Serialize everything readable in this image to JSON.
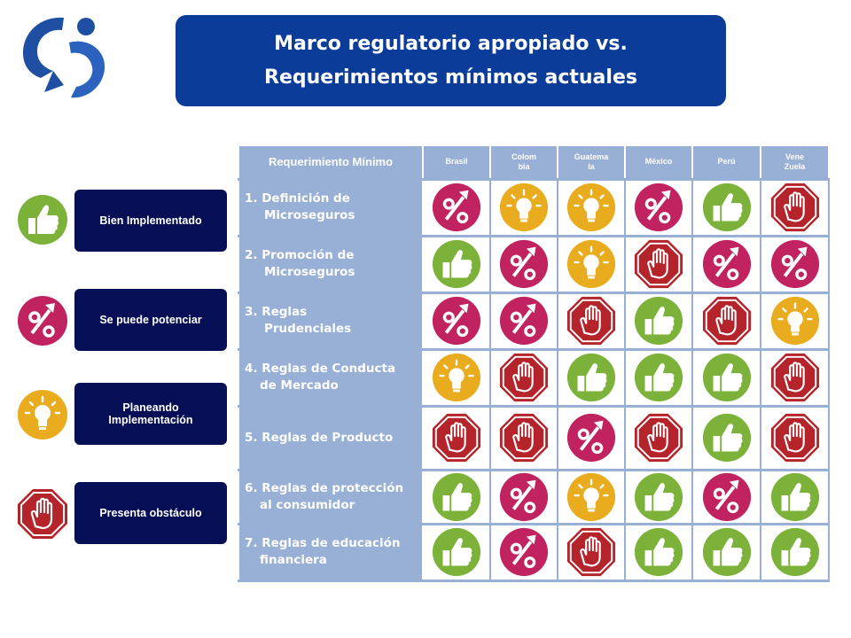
{
  "title": {
    "line1": "Marco regulatorio apropiado vs.",
    "line2": "Requerimientos mínimos actuales"
  },
  "colors": {
    "title_bg": "#0c3c9a",
    "legend_bg": "#060e55",
    "table_bg": "#98b0d6",
    "thumb": "#7cb23a",
    "percent": "#c0235f",
    "bulb": "#e8ac1e",
    "stop": "#b4242a"
  },
  "legend": [
    {
      "label": "Bien Implementado",
      "icon": "thumb"
    },
    {
      "label": "Se puede potenciar",
      "icon": "percent"
    },
    {
      "label": "Planeando Implementación",
      "icon": "bulb"
    },
    {
      "label": "Presenta obstáculo",
      "icon": "stop"
    }
  ],
  "table": {
    "req_header": "Requerimiento Mínimo",
    "countries": [
      {
        "line1": "Brasil",
        "line2": ""
      },
      {
        "line1": "Colom",
        "line2": "bia"
      },
      {
        "line1": "Guatema",
        "line2": "la"
      },
      {
        "line1": "México",
        "line2": ""
      },
      {
        "line1": "Perú",
        "line2": ""
      },
      {
        "line1": "Vene",
        "line2": "Zuela"
      }
    ],
    "rows": [
      {
        "line1": "1.  Definición de",
        "line2": "Microseguros",
        "icons": [
          "percent",
          "bulb",
          "bulb",
          "percent",
          "thumb",
          "stop"
        ]
      },
      {
        "line1": "2.  Promoción de",
        "line2": "Microseguros",
        "icons": [
          "thumb",
          "percent",
          "bulb",
          "stop",
          "percent",
          "percent"
        ]
      },
      {
        "line1": "3.  Reglas",
        "line2": "Prudenciales",
        "icons": [
          "percent",
          "percent",
          "stop",
          "thumb",
          "stop",
          "bulb"
        ]
      },
      {
        "line1": "4. Reglas de Conducta",
        "line2": "de Mercado",
        "icons": [
          "bulb",
          "stop",
          "thumb",
          "thumb",
          "thumb",
          "stop"
        ]
      },
      {
        "line1": "5. Reglas de Producto",
        "line2": "",
        "icons": [
          "stop",
          "stop",
          "percent",
          "stop",
          "thumb",
          "stop"
        ]
      },
      {
        "line1": "6. Reglas de protección",
        "line2": "al consumidor",
        "icons": [
          "thumb",
          "percent",
          "bulb",
          "thumb",
          "percent",
          "thumb"
        ]
      },
      {
        "line1": "7. Reglas de educación",
        "line2": "financiera",
        "icons": [
          "thumb",
          "percent",
          "stop",
          "thumb",
          "thumb",
          "thumb"
        ]
      }
    ]
  }
}
